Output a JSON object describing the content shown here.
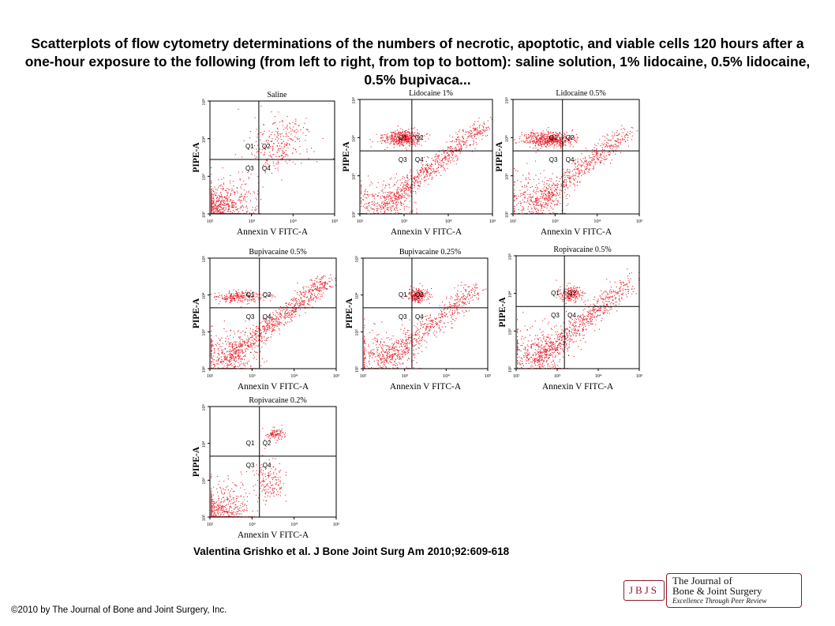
{
  "title": "Scatterplots of flow cytometry determinations of the numbers of necrotic, apoptotic, and viable cells 120 hours after a one-hour exposure to the following (from left to right, from top to bottom): saline solution, 1% lidocaine, 0.5% lidocaine, 0.5% bupivaca...",
  "citation": "Valentina Grishko et al. J Bone Joint Surg Am 2010;92:609-618",
  "copyright": "©2010 by The Journal of Bone and Joint Surgery, Inc.",
  "logo": {
    "badge": "JBJS",
    "line1": "The Journal of",
    "line2": "Bone & Joint Surgery",
    "line3": "Excellence Through Peer Review",
    "color": "#8b1a2a"
  },
  "colors": {
    "dots": "#e8202a",
    "axes": "#000000"
  },
  "chart_data": [
    {
      "type": "scatter",
      "title": "Saline",
      "xlabel": "Annexin V FITC-A",
      "ylabel": "PIPE-A",
      "x_scale": "log",
      "y_scale": "log",
      "xlim": [
        100,
        100000
      ],
      "ylim": [
        100,
        100000
      ],
      "x_ticks": [
        "10²",
        "10³",
        "10⁴",
        "10⁵"
      ],
      "y_ticks": [
        "10²",
        "10³",
        "10⁴",
        "10⁵"
      ],
      "quadrants": [
        "Q1",
        "Q2",
        "Q3",
        "Q4"
      ],
      "gate": {
        "x": 1500,
        "y": 2800
      },
      "clusters": [
        {
          "region": "Q3",
          "center": [
            140,
            140
          ],
          "spread": [
            0.35,
            0.25
          ],
          "count": 700
        },
        {
          "region": "Q3",
          "center": [
            400,
            300
          ],
          "spread": [
            0.35,
            0.35
          ],
          "count": 120
        },
        {
          "region": "Q2",
          "center": [
            6000,
            10000
          ],
          "spread": [
            0.35,
            0.3
          ],
          "count": 180
        },
        {
          "region": "Q2",
          "center": [
            3000,
            4000
          ],
          "spread": [
            0.3,
            0.25
          ],
          "count": 90
        }
      ]
    },
    {
      "type": "scatter",
      "title": "Lidocaine 1%",
      "xlabel": "Annexin V FITC-A",
      "ylabel": "PIPE-A",
      "x_scale": "log",
      "y_scale": "log",
      "xlim": [
        100,
        100000
      ],
      "ylim": [
        100,
        100000
      ],
      "x_ticks": [
        "10²",
        "10³",
        "10⁴",
        "10⁵"
      ],
      "y_ticks": [
        "10²",
        "10³",
        "10⁴",
        "10⁵"
      ],
      "quadrants": [
        "Q1",
        "Q2",
        "Q3",
        "Q4"
      ],
      "gate": {
        "x": 1500,
        "y": 4500
      },
      "clusters": [
        {
          "region": "Q1",
          "center": [
            900,
            10000
          ],
          "spread": [
            0.22,
            0.1
          ],
          "count": 450
        },
        {
          "region": "diagonal",
          "start": [
            300,
            150
          ],
          "end": [
            60000,
            20000
          ],
          "spread": [
            0.2,
            0.2
          ],
          "count": 700
        },
        {
          "region": "Q3",
          "center": [
            300,
            200
          ],
          "spread": [
            0.35,
            0.3
          ],
          "count": 250
        }
      ]
    },
    {
      "type": "scatter",
      "title": "Lidocaine 0.5%",
      "xlabel": "Annexin V FITC-A",
      "ylabel": "PIPE-A",
      "x_scale": "log",
      "y_scale": "log",
      "xlim": [
        100,
        100000
      ],
      "ylim": [
        100,
        100000
      ],
      "x_ticks": [
        "10²",
        "10³",
        "10⁴",
        "10⁵"
      ],
      "y_ticks": [
        "10²",
        "10³",
        "10⁴",
        "10⁵"
      ],
      "quadrants": [
        "Q1",
        "Q2",
        "Q3",
        "Q4"
      ],
      "gate": {
        "x": 1500,
        "y": 4500
      },
      "clusters": [
        {
          "region": "Q1",
          "center": [
            700,
            9000
          ],
          "spread": [
            0.3,
            0.1
          ],
          "count": 550
        },
        {
          "region": "diagonal",
          "start": [
            300,
            150
          ],
          "end": [
            50000,
            15000
          ],
          "spread": [
            0.2,
            0.22
          ],
          "count": 550
        },
        {
          "region": "Q3",
          "center": [
            300,
            250
          ],
          "spread": [
            0.4,
            0.35
          ],
          "count": 280
        }
      ]
    },
    {
      "type": "scatter",
      "title": "Bupivacaine 0.5%",
      "xlabel": "Annexin V FITC-A",
      "ylabel": "PIPE-A",
      "x_scale": "log",
      "y_scale": "log",
      "xlim": [
        100,
        100000
      ],
      "ylim": [
        100,
        100000
      ],
      "x_ticks": [
        "10²",
        "10³",
        "10⁴",
        "10⁵"
      ],
      "y_ticks": [
        "10²",
        "10³",
        "10⁴",
        "10⁵"
      ],
      "quadrants": [
        "Q1",
        "Q2",
        "Q3",
        "Q4"
      ],
      "gate": {
        "x": 1500,
        "y": 4500
      },
      "clusters": [
        {
          "region": "Q1",
          "center": [
            500,
            9000
          ],
          "spread": [
            0.3,
            0.08
          ],
          "count": 250
        },
        {
          "region": "diagonal",
          "start": [
            200,
            150
          ],
          "end": [
            60000,
            25000
          ],
          "spread": [
            0.2,
            0.22
          ],
          "count": 800
        },
        {
          "region": "Q3",
          "center": [
            250,
            250
          ],
          "spread": [
            0.4,
            0.35
          ],
          "count": 300
        }
      ]
    },
    {
      "type": "scatter",
      "title": "Bupivacaine 0.25%",
      "xlabel": "Annexin V FITC-A",
      "ylabel": "PIPE-A",
      "x_scale": "log",
      "y_scale": "log",
      "xlim": [
        100,
        100000
      ],
      "ylim": [
        100,
        100000
      ],
      "x_ticks": [
        "10²",
        "10³",
        "10⁴",
        "10⁵"
      ],
      "y_ticks": [
        "10²",
        "10³",
        "10⁴",
        "10⁵"
      ],
      "quadrants": [
        "Q1",
        "Q2",
        "Q3",
        "Q4"
      ],
      "gate": {
        "x": 1500,
        "y": 4500
      },
      "clusters": [
        {
          "region": "Q2",
          "center": [
            2000,
            10000
          ],
          "spread": [
            0.12,
            0.1
          ],
          "count": 250
        },
        {
          "region": "diagonal",
          "start": [
            300,
            150
          ],
          "end": [
            50000,
            15000
          ],
          "spread": [
            0.22,
            0.25
          ],
          "count": 550
        },
        {
          "region": "Q3",
          "center": [
            300,
            250
          ],
          "spread": [
            0.4,
            0.35
          ],
          "count": 300
        }
      ]
    },
    {
      "type": "scatter",
      "title": "Ropivacaine 0.5%",
      "xlabel": "Annexin V FITC-A",
      "ylabel": "PIPE-A",
      "x_scale": "log",
      "y_scale": "log",
      "xlim": [
        100,
        100000
      ],
      "ylim": [
        100,
        100000
      ],
      "x_ticks": [
        "10²",
        "10³",
        "10⁴",
        "10⁵"
      ],
      "y_ticks": [
        "10²",
        "10³",
        "10⁴",
        "10⁵"
      ],
      "quadrants": [
        "Q1",
        "Q2",
        "Q3",
        "Q4"
      ],
      "gate": {
        "x": 1500,
        "y": 4500
      },
      "clusters": [
        {
          "region": "Q2",
          "center": [
            2000,
            10000
          ],
          "spread": [
            0.15,
            0.1
          ],
          "count": 200
        },
        {
          "region": "diagonal",
          "start": [
            300,
            150
          ],
          "end": [
            60000,
            20000
          ],
          "spread": [
            0.22,
            0.25
          ],
          "count": 650
        },
        {
          "region": "Q3",
          "center": [
            300,
            300
          ],
          "spread": [
            0.4,
            0.35
          ],
          "count": 350
        }
      ]
    },
    {
      "type": "scatter",
      "title": "Ropivacaine 0.2%",
      "xlabel": "Annexin V FITC-A",
      "ylabel": "PIPE-A",
      "x_scale": "log",
      "y_scale": "log",
      "xlim": [
        100,
        100000
      ],
      "ylim": [
        100,
        100000
      ],
      "x_ticks": [
        "10²",
        "10³",
        "10⁴",
        "10⁵"
      ],
      "y_ticks": [
        "10²",
        "10³",
        "10⁴",
        "10⁵"
      ],
      "quadrants": [
        "Q1",
        "Q2",
        "Q3",
        "Q4"
      ],
      "gate": {
        "x": 1500,
        "y": 4500
      },
      "clusters": [
        {
          "region": "Q3",
          "center": [
            140,
            140
          ],
          "spread": [
            0.3,
            0.25
          ],
          "count": 450
        },
        {
          "region": "Q4",
          "center": [
            2500,
            900
          ],
          "spread": [
            0.18,
            0.3
          ],
          "count": 150
        },
        {
          "region": "Q2",
          "center": [
            3500,
            18000
          ],
          "spread": [
            0.12,
            0.08
          ],
          "count": 100
        },
        {
          "region": "Q3",
          "center": [
            350,
            400
          ],
          "spread": [
            0.35,
            0.35
          ],
          "count": 90
        }
      ]
    }
  ]
}
